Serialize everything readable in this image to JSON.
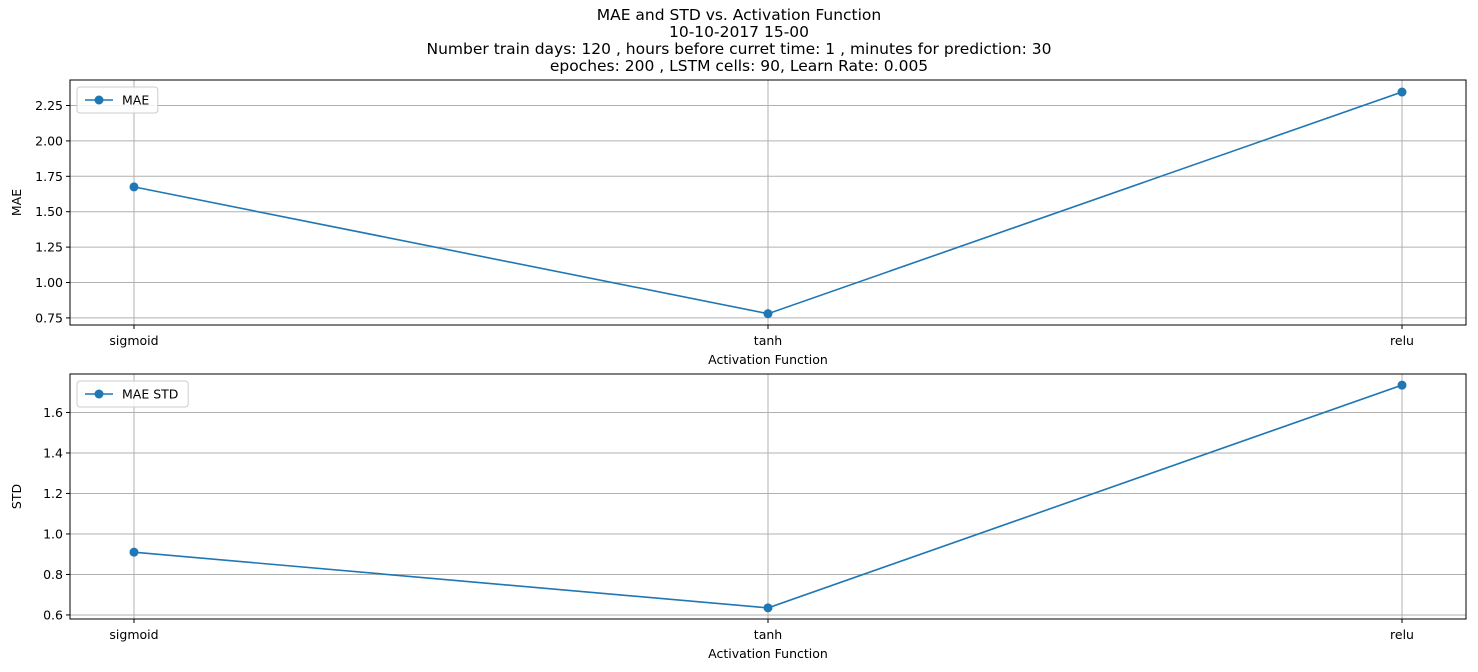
{
  "title_lines": [
    "MAE and STD vs. Activation Function",
    "10-10-2017 15-00",
    "Number train days: 120 , hours before curret time: 1 , minutes for prediction: 30",
    "epoches: 200 , LSTM cells: 90, Learn Rate: 0.005"
  ],
  "colors": {
    "series": "#1f77b4",
    "grid": "#b0b0b0",
    "axis": "#000000"
  },
  "chart_data": [
    {
      "type": "line",
      "categories": [
        "sigmoid",
        "tanh",
        "relu"
      ],
      "series": [
        {
          "name": "MAE",
          "values": [
            1.675,
            0.78,
            2.345
          ]
        }
      ],
      "xlabel": "Activation Function",
      "ylabel": "MAE",
      "ylim": [
        0.7,
        2.43
      ],
      "yticks": [
        0.75,
        1.0,
        1.25,
        1.5,
        1.75,
        2.0,
        2.25
      ],
      "ytick_labels": [
        "0.75",
        "1.00",
        "1.25",
        "1.50",
        "1.75",
        "2.00",
        "2.25"
      ],
      "grid": true,
      "legend": "top-left",
      "marker": "circle"
    },
    {
      "type": "line",
      "categories": [
        "sigmoid",
        "tanh",
        "relu"
      ],
      "series": [
        {
          "name": "MAE STD",
          "values": [
            0.91,
            0.635,
            1.735
          ]
        }
      ],
      "xlabel": "Activation Function",
      "ylabel": "STD",
      "ylim": [
        0.58,
        1.79
      ],
      "yticks": [
        0.6,
        0.8,
        1.0,
        1.2,
        1.4,
        1.6
      ],
      "ytick_labels": [
        "0.6",
        "0.8",
        "1.0",
        "1.2",
        "1.4",
        "1.6"
      ],
      "grid": true,
      "legend": "top-left",
      "marker": "circle"
    }
  ]
}
